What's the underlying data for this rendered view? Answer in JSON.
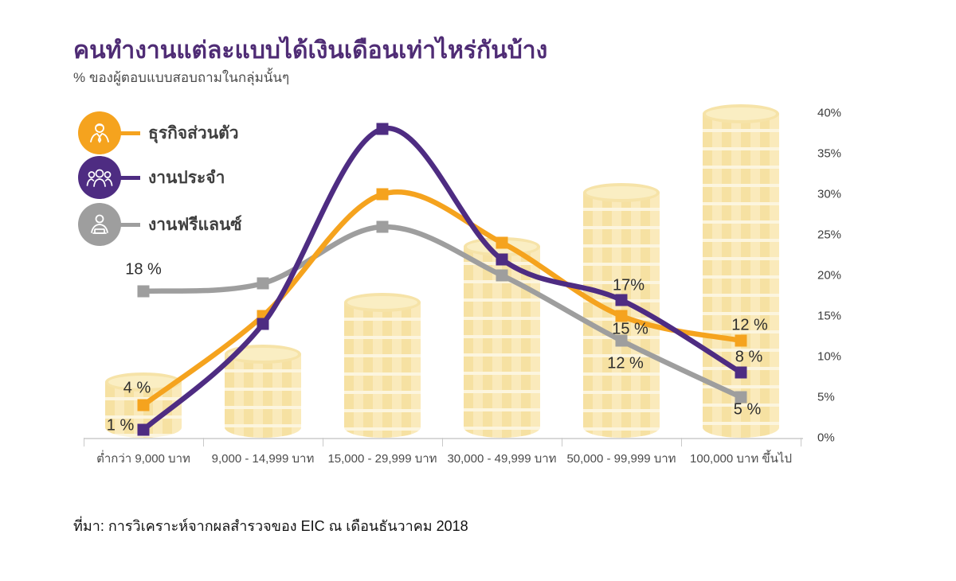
{
  "header": {
    "title": "คนทำงานแต่ละแบบได้เงินเดือนเท่าไหร่กันบ้าง",
    "subtitle": "% ของผู้ตอบแบบสอบถามในกลุ่มนั้นๆ"
  },
  "source": "ที่มา: การวิเคราะห์จากผลสำรวจของ EIC ณ เดือนธันวาคม 2018",
  "colors": {
    "title": "#4F2C75",
    "own_business": "#F5A31E",
    "full_time": "#4E2C82",
    "freelance": "#9E9E9E",
    "coin_body": "#F8E5AB",
    "coin_top": "#FAEEC3",
    "axis": "#D8D8D8",
    "point_label_text": "#2D2D2D"
  },
  "legend": [
    {
      "id": "own_business",
      "label": "ธุรกิจส่วนตัว",
      "icon": "businessman-icon",
      "color": "#F5A31E"
    },
    {
      "id": "full_time",
      "label": "งานประจำ",
      "icon": "team-icon",
      "color": "#4E2C82"
    },
    {
      "id": "freelance",
      "label": "งานฟรีแลนซ์",
      "icon": "freelancer-laptop-icon",
      "color": "#9E9E9E"
    }
  ],
  "chart_data": {
    "type": "line",
    "categories": [
      "ต่ำกว่า 9,000 บาท",
      "9,000 - 14,999 บาท",
      "15,000 - 29,999 บาท",
      "30,000 - 49,999 บาท",
      "50,000 - 99,999 บาท",
      "100,000 บาท ขึ้นไป"
    ],
    "xlabel": "",
    "ylabel": "",
    "series": [
      {
        "id": "own_business",
        "name": "ธุรกิจส่วนตัว",
        "color": "#F5A31E",
        "values": [
          4,
          15,
          30,
          24,
          15,
          12
        ]
      },
      {
        "id": "full_time",
        "name": "งานประจำ",
        "color": "#4E2C82",
        "values": [
          1,
          14,
          38,
          22,
          17,
          8
        ]
      },
      {
        "id": "freelance",
        "name": "งานฟรีแลนซ์",
        "color": "#9E9E9E",
        "values": [
          18,
          19,
          26,
          20,
          12,
          5
        ]
      }
    ],
    "point_labels": [
      {
        "series": "freelance",
        "index": 0,
        "text": "18 %"
      },
      {
        "series": "own_business",
        "index": 0,
        "text": "4 %"
      },
      {
        "series": "full_time",
        "index": 0,
        "text": "1 %"
      },
      {
        "series": "full_time",
        "index": 4,
        "text": "17%"
      },
      {
        "series": "own_business",
        "index": 4,
        "text": "15 %"
      },
      {
        "series": "freelance",
        "index": 4,
        "text": "12 %"
      },
      {
        "series": "own_business",
        "index": 5,
        "text": "12 %"
      },
      {
        "series": "full_time",
        "index": 5,
        "text": "8 %"
      },
      {
        "series": "freelance",
        "index": 5,
        "text": "5 %"
      }
    ],
    "y_axis": {
      "min": 0,
      "max": 40,
      "step": 5,
      "position": "right",
      "ticks": [
        "0%",
        "5%",
        "10%",
        "15%",
        "20%",
        "25%",
        "30%",
        "35%",
        "40%"
      ]
    },
    "grid": false,
    "legend_position": "upper-left",
    "background_bars_note": "decorative stacks of coins rising left to right behind the lines"
  }
}
